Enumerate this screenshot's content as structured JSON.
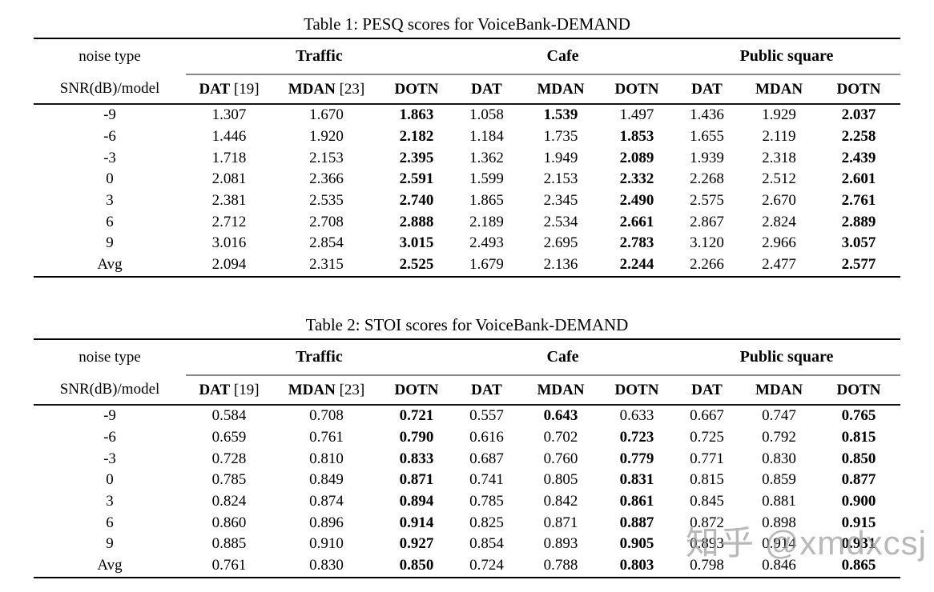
{
  "watermark": {
    "text": "知乎 @xmdxcsj",
    "color": "#9e9e9e"
  },
  "tables": [
    {
      "title": "Table 1: PESQ scores for VoiceBank-DEMAND",
      "corner": {
        "top": "noise type",
        "bottom": "SNR(dB)/model"
      },
      "groups": [
        "Traffic",
        "Cafe",
        "Public square"
      ],
      "models": [
        {
          "name": "DAT",
          "ref": "[19]"
        },
        {
          "name": "MDAN",
          "ref": "[23]"
        },
        {
          "name": "DOTN",
          "ref": ""
        },
        {
          "name": "DAT",
          "ref": ""
        },
        {
          "name": "MDAN",
          "ref": ""
        },
        {
          "name": "DOTN",
          "ref": ""
        },
        {
          "name": "DAT",
          "ref": ""
        },
        {
          "name": "MDAN",
          "ref": ""
        },
        {
          "name": "DOTN",
          "ref": ""
        }
      ],
      "rows": [
        {
          "label": "-9",
          "cells": [
            [
              "1.307",
              0
            ],
            [
              "1.670",
              0
            ],
            [
              "1.863",
              1
            ],
            [
              "1.058",
              0
            ],
            [
              "1.539",
              1
            ],
            [
              "1.497",
              0
            ],
            [
              "1.436",
              0
            ],
            [
              "1.929",
              0
            ],
            [
              "2.037",
              1
            ]
          ]
        },
        {
          "label": "-6",
          "cells": [
            [
              "1.446",
              0
            ],
            [
              "1.920",
              0
            ],
            [
              "2.182",
              1
            ],
            [
              "1.184",
              0
            ],
            [
              "1.735",
              0
            ],
            [
              "1.853",
              1
            ],
            [
              "1.655",
              0
            ],
            [
              "2.119",
              0
            ],
            [
              "2.258",
              1
            ]
          ]
        },
        {
          "label": "-3",
          "cells": [
            [
              "1.718",
              0
            ],
            [
              "2.153",
              0
            ],
            [
              "2.395",
              1
            ],
            [
              "1.362",
              0
            ],
            [
              "1.949",
              0
            ],
            [
              "2.089",
              1
            ],
            [
              "1.939",
              0
            ],
            [
              "2.318",
              0
            ],
            [
              "2.439",
              1
            ]
          ]
        },
        {
          "label": "0",
          "cells": [
            [
              "2.081",
              0
            ],
            [
              "2.366",
              0
            ],
            [
              "2.591",
              1
            ],
            [
              "1.599",
              0
            ],
            [
              "2.153",
              0
            ],
            [
              "2.332",
              1
            ],
            [
              "2.268",
              0
            ],
            [
              "2.512",
              0
            ],
            [
              "2.601",
              1
            ]
          ]
        },
        {
          "label": "3",
          "cells": [
            [
              "2.381",
              0
            ],
            [
              "2.535",
              0
            ],
            [
              "2.740",
              1
            ],
            [
              "1.865",
              0
            ],
            [
              "2.345",
              0
            ],
            [
              "2.490",
              1
            ],
            [
              "2.575",
              0
            ],
            [
              "2.670",
              0
            ],
            [
              "2.761",
              1
            ]
          ]
        },
        {
          "label": "6",
          "cells": [
            [
              "2.712",
              0
            ],
            [
              "2.708",
              0
            ],
            [
              "2.888",
              1
            ],
            [
              "2.189",
              0
            ],
            [
              "2.534",
              0
            ],
            [
              "2.661",
              1
            ],
            [
              "2.867",
              0
            ],
            [
              "2.824",
              0
            ],
            [
              "2.889",
              1
            ]
          ]
        },
        {
          "label": "9",
          "cells": [
            [
              "3.016",
              0
            ],
            [
              "2.854",
              0
            ],
            [
              "3.015",
              1
            ],
            [
              "2.493",
              0
            ],
            [
              "2.695",
              0
            ],
            [
              "2.783",
              1
            ],
            [
              "3.120",
              0
            ],
            [
              "2.966",
              0
            ],
            [
              "3.057",
              1
            ]
          ]
        },
        {
          "label": "Avg",
          "cells": [
            [
              "2.094",
              0
            ],
            [
              "2.315",
              0
            ],
            [
              "2.525",
              1
            ],
            [
              "1.679",
              0
            ],
            [
              "2.136",
              0
            ],
            [
              "2.244",
              1
            ],
            [
              "2.266",
              0
            ],
            [
              "2.477",
              0
            ],
            [
              "2.577",
              1
            ]
          ]
        }
      ]
    },
    {
      "title": "Table 2: STOI scores for VoiceBank-DEMAND",
      "corner": {
        "top": "noise type",
        "bottom": "SNR(dB)/model"
      },
      "groups": [
        "Traffic",
        "Cafe",
        "Public square"
      ],
      "models": [
        {
          "name": "DAT",
          "ref": "[19]"
        },
        {
          "name": "MDAN",
          "ref": "[23]"
        },
        {
          "name": "DOTN",
          "ref": ""
        },
        {
          "name": "DAT",
          "ref": ""
        },
        {
          "name": "MDAN",
          "ref": ""
        },
        {
          "name": "DOTN",
          "ref": ""
        },
        {
          "name": "DAT",
          "ref": ""
        },
        {
          "name": "MDAN",
          "ref": ""
        },
        {
          "name": "DOTN",
          "ref": ""
        }
      ],
      "rows": [
        {
          "label": "-9",
          "cells": [
            [
              "0.584",
              0
            ],
            [
              "0.708",
              0
            ],
            [
              "0.721",
              1
            ],
            [
              "0.557",
              0
            ],
            [
              "0.643",
              1
            ],
            [
              "0.633",
              0
            ],
            [
              "0.667",
              0
            ],
            [
              "0.747",
              0
            ],
            [
              "0.765",
              1
            ]
          ]
        },
        {
          "label": "-6",
          "cells": [
            [
              "0.659",
              0
            ],
            [
              "0.761",
              0
            ],
            [
              "0.790",
              1
            ],
            [
              "0.616",
              0
            ],
            [
              "0.702",
              0
            ],
            [
              "0.723",
              1
            ],
            [
              "0.725",
              0
            ],
            [
              "0.792",
              0
            ],
            [
              "0.815",
              1
            ]
          ]
        },
        {
          "label": "-3",
          "cells": [
            [
              "0.728",
              0
            ],
            [
              "0.810",
              0
            ],
            [
              "0.833",
              1
            ],
            [
              "0.687",
              0
            ],
            [
              "0.760",
              0
            ],
            [
              "0.779",
              1
            ],
            [
              "0.771",
              0
            ],
            [
              "0.830",
              0
            ],
            [
              "0.850",
              1
            ]
          ]
        },
        {
          "label": "0",
          "cells": [
            [
              "0.785",
              0
            ],
            [
              "0.849",
              0
            ],
            [
              "0.871",
              1
            ],
            [
              "0.741",
              0
            ],
            [
              "0.805",
              0
            ],
            [
              "0.831",
              1
            ],
            [
              "0.815",
              0
            ],
            [
              "0.859",
              0
            ],
            [
              "0.877",
              1
            ]
          ]
        },
        {
          "label": "3",
          "cells": [
            [
              "0.824",
              0
            ],
            [
              "0.874",
              0
            ],
            [
              "0.894",
              1
            ],
            [
              "0.785",
              0
            ],
            [
              "0.842",
              0
            ],
            [
              "0.861",
              1
            ],
            [
              "0.845",
              0
            ],
            [
              "0.881",
              0
            ],
            [
              "0.900",
              1
            ]
          ]
        },
        {
          "label": "6",
          "cells": [
            [
              "0.860",
              0
            ],
            [
              "0.896",
              0
            ],
            [
              "0.914",
              1
            ],
            [
              "0.825",
              0
            ],
            [
              "0.871",
              0
            ],
            [
              "0.887",
              1
            ],
            [
              "0.872",
              0
            ],
            [
              "0.898",
              0
            ],
            [
              "0.915",
              1
            ]
          ]
        },
        {
          "label": "9",
          "cells": [
            [
              "0.885",
              0
            ],
            [
              "0.910",
              0
            ],
            [
              "0.927",
              1
            ],
            [
              "0.854",
              0
            ],
            [
              "0.893",
              0
            ],
            [
              "0.905",
              1
            ],
            [
              "0.893",
              0
            ],
            [
              "0.914",
              0
            ],
            [
              "0.931",
              1
            ]
          ]
        },
        {
          "label": "Avg",
          "cells": [
            [
              "0.761",
              0
            ],
            [
              "0.830",
              0
            ],
            [
              "0.850",
              1
            ],
            [
              "0.724",
              0
            ],
            [
              "0.788",
              0
            ],
            [
              "0.803",
              1
            ],
            [
              "0.798",
              0
            ],
            [
              "0.846",
              0
            ],
            [
              "0.865",
              1
            ]
          ]
        }
      ]
    }
  ]
}
